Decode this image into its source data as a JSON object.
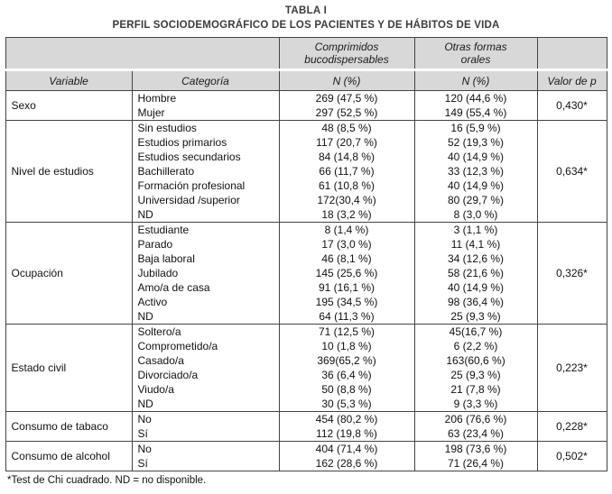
{
  "page": {
    "title_line1": "TABLA I",
    "title_line2": "PERFIL SOCIODEMOGRÁFICO DE LOS PACIENTES Y DE HÁBITOS DE VIDA",
    "footnote": "*Test de Chi cuadrado. ND = no disponible."
  },
  "table": {
    "headers": {
      "group_col1": "Comprimidos\nbucodispersables",
      "group_col2": "Otras formas\norales",
      "variable": "Variable",
      "categoria": "Categoría",
      "n_pct": "N (%)",
      "valor_p": "Valor de p"
    },
    "groups": [
      {
        "variable": "Sexo",
        "p": "0,430*",
        "rows": [
          {
            "cat": "Hombre",
            "c1": "269 (47,5 %)",
            "c2": "120 (44,6 %)"
          },
          {
            "cat": "Mujer",
            "c1": "297 (52,5 %)",
            "c2": "149 (55,4 %)"
          }
        ]
      },
      {
        "variable": "Nivel de estudios",
        "p": "0,634*",
        "rows": [
          {
            "cat": "Sin estudios",
            "c1": "48 (8,5 %)",
            "c2": "16 (5,9 %)"
          },
          {
            "cat": "Estudios primarios",
            "c1": "117 (20,7 %)",
            "c2": "52 (19,3 %)"
          },
          {
            "cat": "Estudios secundarios",
            "c1": "84 (14,8 %)",
            "c2": "40 (14,9 %)"
          },
          {
            "cat": "Bachillerato",
            "c1": "66 (11,7 %)",
            "c2": "33 (12,3 %)"
          },
          {
            "cat": "Formación profesional",
            "c1": "61 (10,8 %)",
            "c2": "40 (14,9 %)"
          },
          {
            "cat": "Universidad /superior",
            "c1": "172(30,4 %)",
            "c2": "80 (29,7 %)"
          },
          {
            "cat": "ND",
            "c1": "18 (3,2 %)",
            "c2": "8 (3,0 %)"
          }
        ]
      },
      {
        "variable": "Ocupación",
        "p": "0,326*",
        "rows": [
          {
            "cat": "Estudiante",
            "c1": "8 (1,4 %)",
            "c2": "3 (1,1 %)"
          },
          {
            "cat": "Parado",
            "c1": "17 (3,0 %)",
            "c2": "11 (4,1 %)"
          },
          {
            "cat": "Baja laboral",
            "c1": "46 (8,1 %)",
            "c2": "34 (12,6 %)"
          },
          {
            "cat": "Jubilado",
            "c1": "145 (25,6 %)",
            "c2": "58 (21,6 %)"
          },
          {
            "cat": "Amo/a de casa",
            "c1": "91 (16,1 %)",
            "c2": "40 (14,9 %)"
          },
          {
            "cat": "Activo",
            "c1": "195 (34,5 %)",
            "c2": "98 (36,4 %)"
          },
          {
            "cat": "ND",
            "c1": "64 (11,3 %)",
            "c2": "25 (9,3 %)"
          }
        ]
      },
      {
        "variable": "Estado civil",
        "p": "0,223*",
        "rows": [
          {
            "cat": "Soltero/a",
            "c1": "71 (12,5 %)",
            "c2": "45(16,7 %)"
          },
          {
            "cat": "Comprometido/a",
            "c1": "10 (1,8 %)",
            "c2": "6 (2,2 %)"
          },
          {
            "cat": "Casado/a",
            "c1": "369(65,2 %)",
            "c2": "163(60,6 %)"
          },
          {
            "cat": "Divorciado/a",
            "c1": "36 (6,4 %)",
            "c2": "25 (9,3 %)"
          },
          {
            "cat": "Viudo/a",
            "c1": "50 (8,8 %)",
            "c2": "21 (7,8 %)"
          },
          {
            "cat": "ND",
            "c1": "30 (5,3 %)",
            "c2": "9 (3,3 %)"
          }
        ]
      },
      {
        "variable": "Consumo de tabaco",
        "p": "0,228*",
        "rows": [
          {
            "cat": "No",
            "c1": "454 (80,2 %)",
            "c2": "206 (76,6 %)"
          },
          {
            "cat": "Sí",
            "c1": "112 (19,8 %)",
            "c2": "63 (23,4 %)"
          }
        ]
      },
      {
        "variable": "Consumo de alcohol",
        "p": "0,502*",
        "rows": [
          {
            "cat": "No",
            "c1": "404 (71,4 %)",
            "c2": "198 (73,6 %)"
          },
          {
            "cat": "Sí",
            "c1": "162 (28,6 %)",
            "c2": "71 (26,4 %)"
          }
        ]
      }
    ]
  }
}
